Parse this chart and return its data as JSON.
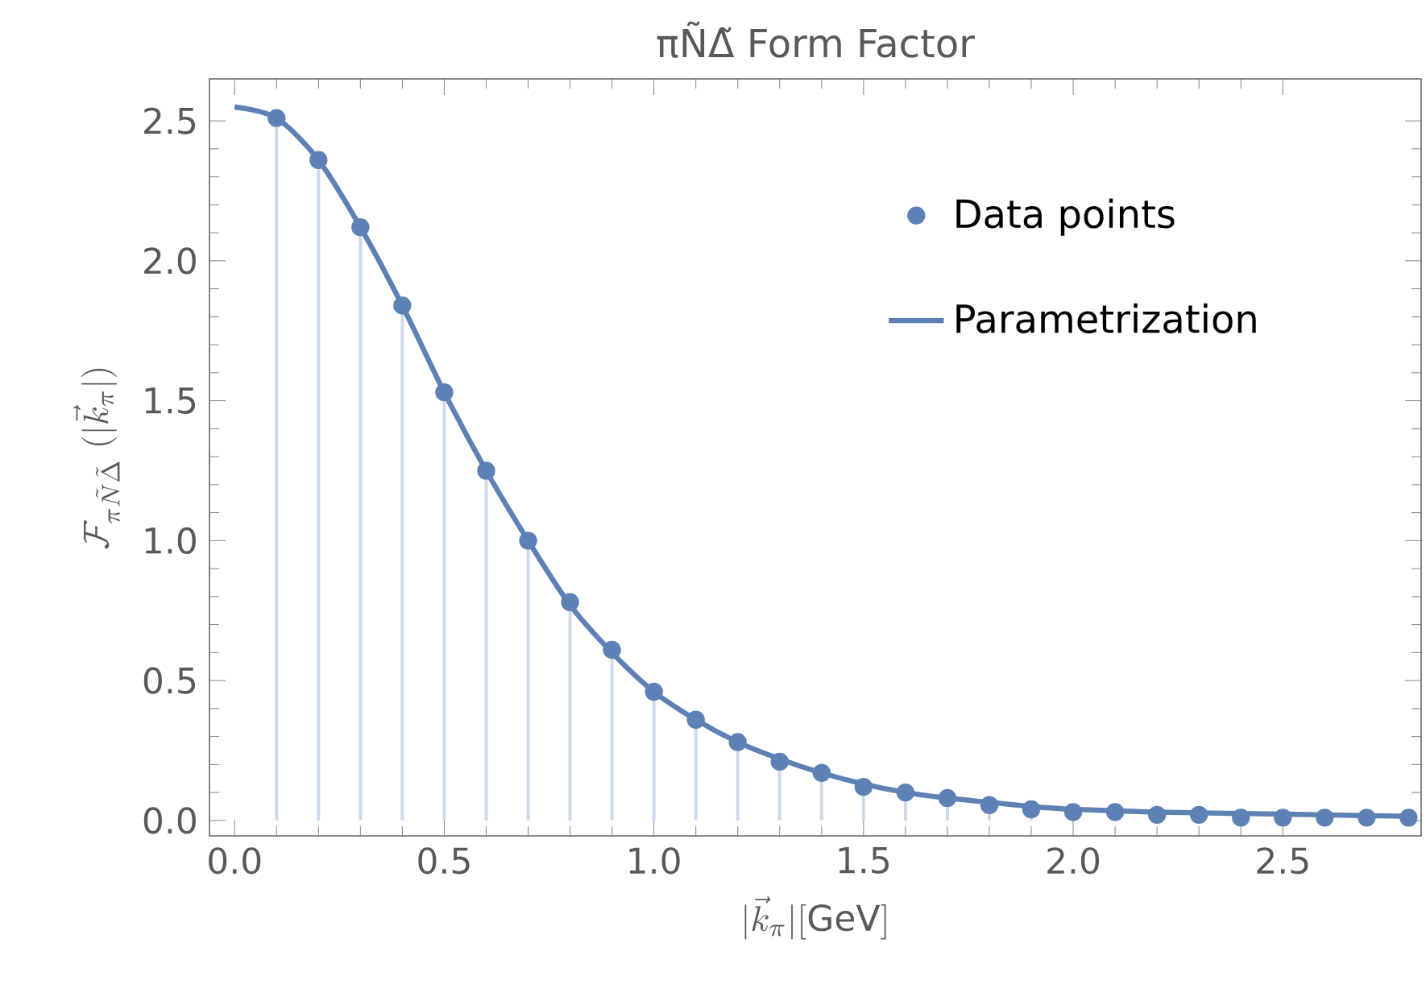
{
  "chart_data": {
    "type": "line",
    "title": "πÑΔ̃ Form Factor",
    "xlabel": "|\\vec{k}_{\\pi}|[\\mathrm{GeV}]",
    "ylabel": "\\mathcal{F}_{\\pi\\tilde{N}\\tilde{\\Delta}}\\;(|\\vec{k}_{\\pi}|)",
    "xlim": [
      -0.06,
      2.83
    ],
    "ylim": [
      -0.055,
      2.65
    ],
    "xticks": [
      {
        "value": 0,
        "label": "0.0"
      },
      0.5,
      {
        "value": 1,
        "label": "1.0"
      },
      1.5,
      {
        "value": 2,
        "label": "2.0"
      },
      2.5
    ],
    "yticks": [
      {
        "value": 0,
        "label": "0.0"
      },
      0.5,
      {
        "value": 1,
        "label": "1.0"
      },
      1.5,
      {
        "value": 2,
        "label": "2.0"
      },
      2.5
    ],
    "legend": "top right",
    "grid": false,
    "series": [
      {
        "name": "Data points",
        "type": "lollipop",
        "marker": "circle",
        "color": "#5e81b5",
        "x": [
          0.1,
          0.2,
          0.3,
          0.4,
          0.5,
          0.6,
          0.7,
          0.8,
          0.9,
          1.0,
          1.1,
          1.2,
          1.3,
          1.4,
          1.5,
          1.6,
          1.7,
          1.8,
          1.9,
          2.0,
          2.1,
          2.2,
          2.3,
          2.4,
          2.5,
          2.6,
          2.7,
          2.8
        ],
        "values": [
          2.51,
          2.36,
          2.12,
          1.84,
          1.53,
          1.25,
          1.0,
          0.78,
          0.61,
          0.46,
          0.36,
          0.28,
          0.21,
          0.17,
          0.12,
          0.1,
          0.08,
          0.055,
          0.04,
          0.03,
          0.03,
          0.02,
          0.02,
          0.01,
          0.01,
          0.01,
          0.01,
          0.01
        ]
      },
      {
        "name": "Parametrization",
        "marker": "none",
        "color": "#5e81b5",
        "x": [
          0,
          0.1,
          0.2,
          0.3,
          0.4,
          0.5,
          0.6,
          0.7,
          0.8,
          0.9,
          1.0,
          1.1,
          1.2,
          1.3,
          1.4,
          1.5,
          1.6,
          1.7,
          1.8,
          1.9,
          2.0,
          2.2,
          2.4,
          2.6,
          2.8
        ],
        "values": [
          2.55,
          2.51,
          2.36,
          2.12,
          1.84,
          1.53,
          1.25,
          1.0,
          0.77,
          0.6,
          0.46,
          0.36,
          0.28,
          0.22,
          0.17,
          0.13,
          0.1,
          0.08,
          0.065,
          0.05,
          0.04,
          0.03,
          0.025,
          0.02,
          0.015
        ]
      }
    ]
  }
}
